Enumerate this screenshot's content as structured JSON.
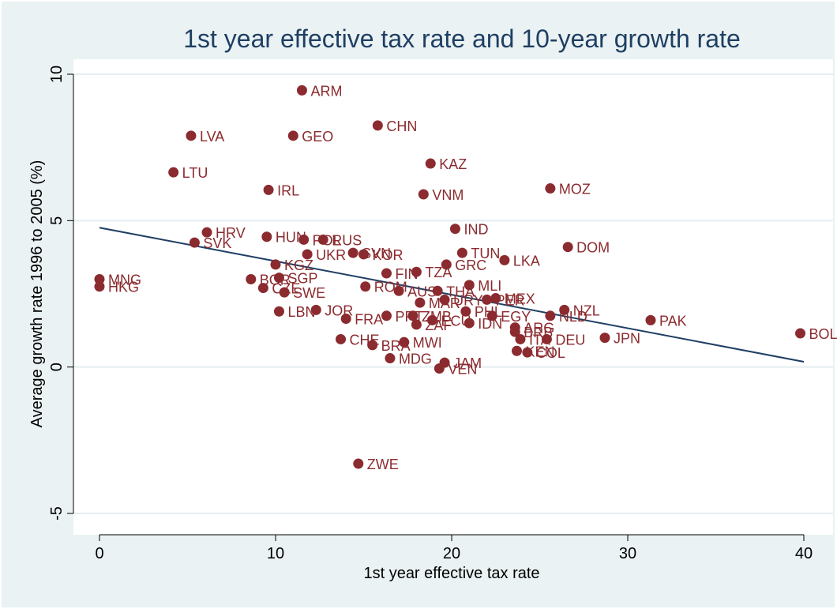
{
  "chart_data": {
    "type": "scatter",
    "title": "1st year effective tax rate and 10-year growth rate",
    "xlabel": "1st year effective tax rate",
    "ylabel": "Average growth rate 1996 to 2005 (%)",
    "xlim": [
      0,
      40
    ],
    "ylim": [
      -5,
      10
    ],
    "xticks": [
      0,
      10,
      20,
      30,
      40
    ],
    "yticks": [
      -5,
      0,
      5,
      10
    ],
    "grid": "horizontal",
    "legend": "none",
    "colors": {
      "background": "#eaf2f3",
      "plot": "#ffffff",
      "grid": "#e4eef0",
      "marker": "#8b2b2f",
      "fit_line": "#1f3f63",
      "title": "#1f3f63"
    },
    "fit_line": {
      "x": [
        0,
        40
      ],
      "y": [
        4.76,
        0.18
      ]
    },
    "points": [
      {
        "label": "ARM",
        "x": 11.5,
        "y": 9.45
      },
      {
        "label": "CHN",
        "x": 15.8,
        "y": 8.25
      },
      {
        "label": "LVA",
        "x": 5.2,
        "y": 7.9
      },
      {
        "label": "GEO",
        "x": 11.0,
        "y": 7.9
      },
      {
        "label": "KAZ",
        "x": 18.8,
        "y": 6.95
      },
      {
        "label": "LTU",
        "x": 4.2,
        "y": 6.65
      },
      {
        "label": "IRL",
        "x": 9.6,
        "y": 6.05
      },
      {
        "label": "MOZ",
        "x": 25.6,
        "y": 6.1
      },
      {
        "label": "VNM",
        "x": 18.4,
        "y": 5.9
      },
      {
        "label": "IND",
        "x": 20.2,
        "y": 4.72
      },
      {
        "label": "HRV",
        "x": 6.1,
        "y": 4.6
      },
      {
        "label": "HUN",
        "x": 9.5,
        "y": 4.45
      },
      {
        "label": "POL",
        "x": 11.6,
        "y": 4.35
      },
      {
        "label": "RUS",
        "x": 12.7,
        "y": 4.35
      },
      {
        "label": "SVK",
        "x": 5.4,
        "y": 4.25
      },
      {
        "label": "DOM",
        "x": 26.6,
        "y": 4.1
      },
      {
        "label": "UKR",
        "x": 11.8,
        "y": 3.85
      },
      {
        "label": "SVN",
        "x": 14.4,
        "y": 3.9
      },
      {
        "label": "KOR",
        "x": 15.0,
        "y": 3.85
      },
      {
        "label": "TUN",
        "x": 20.6,
        "y": 3.9
      },
      {
        "label": "LKA",
        "x": 23.0,
        "y": 3.65
      },
      {
        "label": "KGZ",
        "x": 10.0,
        "y": 3.5
      },
      {
        "label": "GRC",
        "x": 19.7,
        "y": 3.5
      },
      {
        "label": "FIN",
        "x": 16.3,
        "y": 3.2
      },
      {
        "label": "TZA",
        "x": 18.0,
        "y": 3.25
      },
      {
        "label": "SGP",
        "x": 10.2,
        "y": 3.05
      },
      {
        "label": "BGR",
        "x": 8.6,
        "y": 3.0
      },
      {
        "label": "MNG",
        "x": 0.0,
        "y": 3.0
      },
      {
        "label": "HKG",
        "x": 0.0,
        "y": 2.75
      },
      {
        "label": "MLI",
        "x": 21.0,
        "y": 2.8
      },
      {
        "label": "ROM",
        "x": 15.1,
        "y": 2.75
      },
      {
        "label": "CZE",
        "x": 9.3,
        "y": 2.7
      },
      {
        "label": "SWE",
        "x": 10.5,
        "y": 2.55
      },
      {
        "label": "AUS",
        "x": 17.0,
        "y": 2.6
      },
      {
        "label": "THA",
        "x": 19.2,
        "y": 2.6
      },
      {
        "label": "MEX",
        "x": 22.5,
        "y": 2.35
      },
      {
        "label": "PER",
        "x": 22.0,
        "y": 2.3
      },
      {
        "label": "URY",
        "x": 19.6,
        "y": 2.3
      },
      {
        "label": "MAR",
        "x": 18.2,
        "y": 2.2
      },
      {
        "label": "JOR",
        "x": 12.3,
        "y": 1.95
      },
      {
        "label": "LBN",
        "x": 10.2,
        "y": 1.9
      },
      {
        "label": "NZL",
        "x": 26.4,
        "y": 1.95
      },
      {
        "label": "PHL",
        "x": 20.8,
        "y": 1.9
      },
      {
        "label": "EGY",
        "x": 22.3,
        "y": 1.75
      },
      {
        "label": "ARG",
        "x": 23.6,
        "y": 1.35
      },
      {
        "label": "NLD",
        "x": 25.6,
        "y": 1.75
      },
      {
        "label": "FRA",
        "x": 14.0,
        "y": 1.65
      },
      {
        "label": "PRT",
        "x": 16.3,
        "y": 1.75
      },
      {
        "label": "ZMB",
        "x": 17.8,
        "y": 1.75
      },
      {
        "label": "ECU",
        "x": 18.9,
        "y": 1.6
      },
      {
        "label": "IDN",
        "x": 21.0,
        "y": 1.5
      },
      {
        "label": "ZAF",
        "x": 18.0,
        "y": 1.45
      },
      {
        "label": "PAK",
        "x": 31.3,
        "y": 1.6
      },
      {
        "label": "BRB",
        "x": 23.6,
        "y": 1.2
      },
      {
        "label": "BOL",
        "x": 39.8,
        "y": 1.15
      },
      {
        "label": "CHE",
        "x": 13.7,
        "y": 0.95
      },
      {
        "label": "ITA",
        "x": 23.9,
        "y": 0.95
      },
      {
        "label": "DEU",
        "x": 25.4,
        "y": 0.95
      },
      {
        "label": "JPN",
        "x": 28.7,
        "y": 1.0
      },
      {
        "label": "BRA",
        "x": 15.5,
        "y": 0.75
      },
      {
        "label": "MWI",
        "x": 17.3,
        "y": 0.85
      },
      {
        "label": "KEN",
        "x": 23.7,
        "y": 0.55
      },
      {
        "label": "COL",
        "x": 24.3,
        "y": 0.5
      },
      {
        "label": "MDG",
        "x": 16.5,
        "y": 0.3
      },
      {
        "label": "JAM",
        "x": 19.6,
        "y": 0.15
      },
      {
        "label": "VEN",
        "x": 19.3,
        "y": -0.05
      },
      {
        "label": "ZWE",
        "x": 14.7,
        "y": -3.3
      }
    ]
  }
}
